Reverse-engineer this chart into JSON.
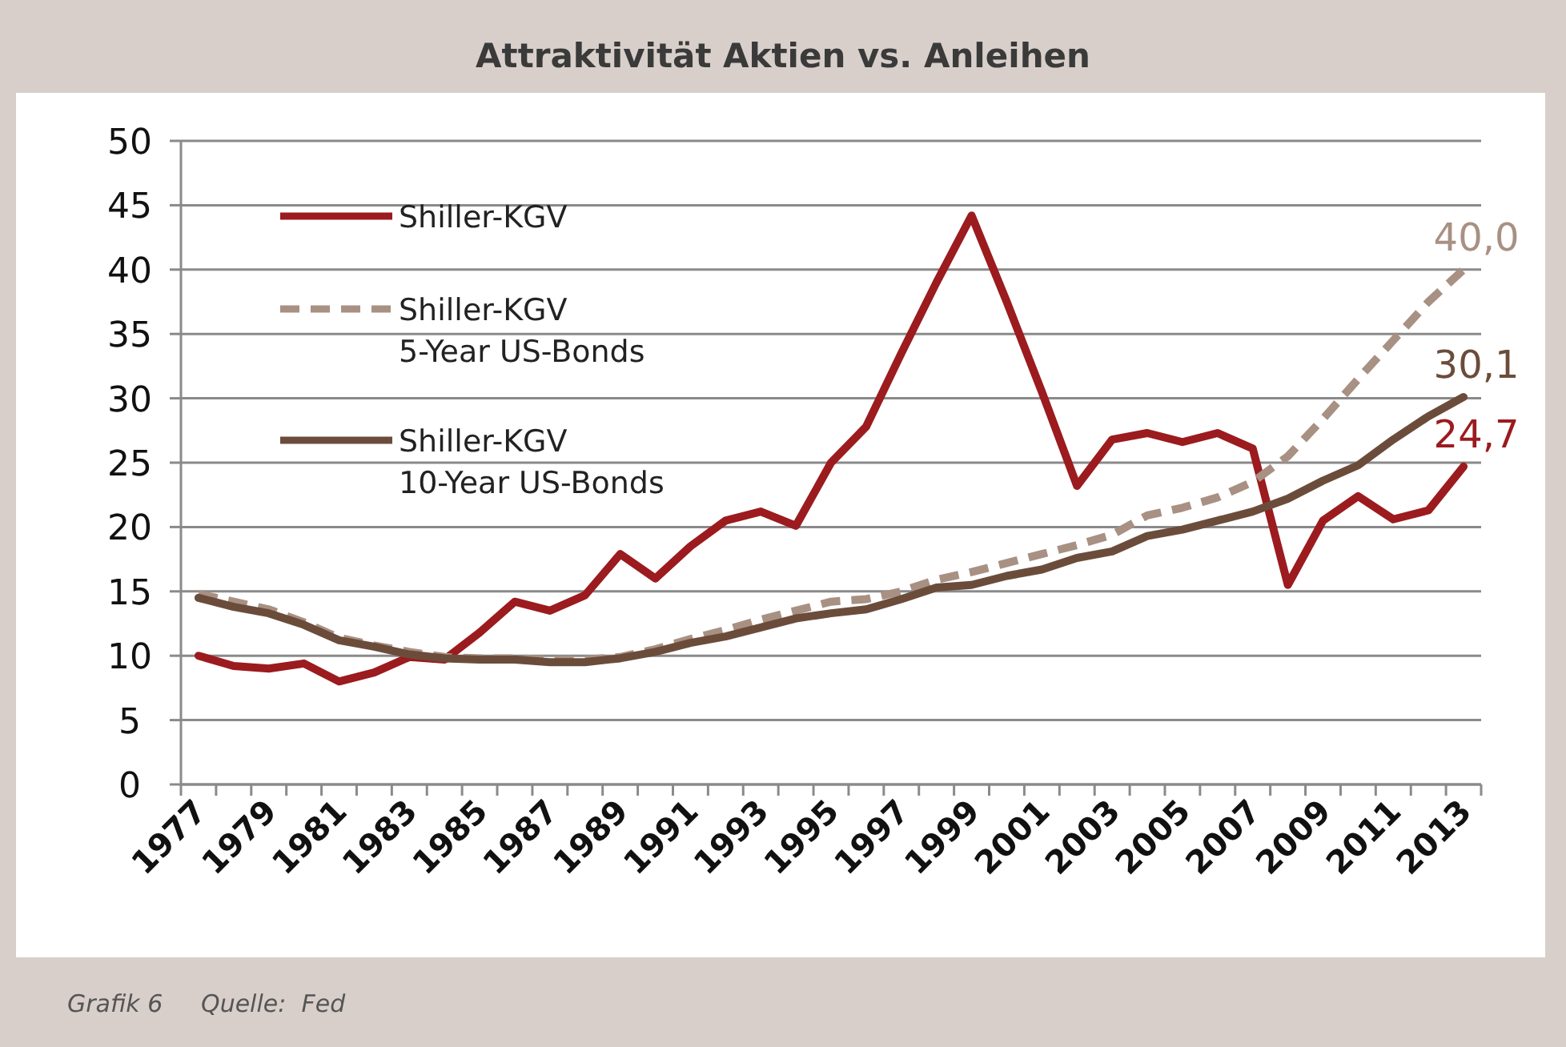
{
  "chart_data": {
    "type": "line",
    "title": "Attraktivität Aktien vs. Anleihen",
    "categories": [
      "1977",
      null,
      "1979",
      null,
      "1981",
      null,
      "1983",
      null,
      "1985",
      null,
      "1987",
      null,
      "1989",
      null,
      "1991",
      null,
      "1993",
      null,
      "1995",
      null,
      "1997",
      null,
      "1999",
      null,
      "2001",
      null,
      "2003",
      null,
      "2005",
      null,
      "2007",
      null,
      "2009",
      null,
      "2011",
      null,
      "2013"
    ],
    "series": [
      {
        "name": "Shiller-KGV",
        "color": "#9b1b1e",
        "line_style": "solid",
        "values": [
          10,
          9.2,
          9.0,
          9.4,
          8.0,
          8.7,
          9.9,
          9.7,
          11.8,
          14.2,
          13.5,
          14.7,
          17.9,
          16.0,
          18.5,
          20.5,
          21.2,
          20.1,
          25.0,
          27.8,
          33.5,
          39.0,
          44.2,
          37.5,
          30.5,
          23.2,
          26.8,
          27.3,
          26.6,
          27.3,
          26.1,
          15.5,
          20.5,
          22.4,
          20.6,
          21.3,
          24.7
        ],
        "value_labels": [
          null,
          null,
          null,
          null,
          null,
          null,
          null,
          null,
          null,
          null,
          null,
          null,
          null,
          null,
          null,
          null,
          null,
          null,
          null,
          null,
          null,
          null,
          null,
          null,
          null,
          null,
          null,
          null,
          null,
          null,
          null,
          null,
          null,
          null,
          null,
          null,
          "24,7"
        ]
      },
      {
        "name": "Shiller-KGV 5-Year US-Bonds",
        "color": "#a89083",
        "line_style": "dashed",
        "values": [
          14.8,
          14.2,
          13.6,
          12.6,
          11.4,
          10.8,
          10.3,
          9.9,
          9.8,
          9.8,
          9.7,
          9.7,
          9.9,
          10.5,
          11.3,
          12.0,
          12.8,
          13.5,
          14.2,
          14.4,
          15.0,
          15.9,
          16.5,
          17.2,
          17.9,
          18.6,
          19.4,
          20.9,
          21.5,
          22.3,
          23.5,
          25.5,
          28.4,
          31.5,
          34.5,
          37.5,
          40.0
        ],
        "value_labels": [
          null,
          null,
          null,
          null,
          null,
          null,
          null,
          null,
          null,
          null,
          null,
          null,
          null,
          null,
          null,
          null,
          null,
          null,
          null,
          null,
          null,
          null,
          null,
          null,
          null,
          null,
          null,
          null,
          null,
          null,
          null,
          null,
          null,
          null,
          null,
          null,
          "40,0"
        ]
      },
      {
        "name": "Shiller-KGV 10-Year US-Bonds",
        "color": "#6b4c3b",
        "line_style": "solid",
        "values": [
          14.5,
          13.8,
          13.3,
          12.4,
          11.2,
          10.7,
          10.1,
          9.8,
          9.7,
          9.7,
          9.5,
          9.5,
          9.8,
          10.3,
          11.0,
          11.5,
          12.2,
          12.9,
          13.3,
          13.6,
          14.4,
          15.3,
          15.5,
          16.2,
          16.7,
          17.6,
          18.1,
          19.3,
          19.8,
          20.5,
          21.2,
          22.2,
          23.6,
          24.8,
          26.8,
          28.6,
          30.1
        ],
        "value_labels": [
          null,
          null,
          null,
          null,
          null,
          null,
          null,
          null,
          null,
          null,
          null,
          null,
          null,
          null,
          null,
          null,
          null,
          null,
          null,
          null,
          null,
          null,
          null,
          null,
          null,
          null,
          null,
          null,
          null,
          null,
          null,
          null,
          null,
          null,
          null,
          null,
          "30,1"
        ]
      }
    ],
    "ylim": [
      0,
      50
    ],
    "yticks": [
      0,
      5,
      10,
      15,
      20,
      25,
      30,
      35,
      40,
      45,
      50
    ],
    "grid": "y",
    "legend": "top left",
    "marker": "none",
    "annotations": [
      "Grafik 6     Quelle:  Fed"
    ]
  }
}
